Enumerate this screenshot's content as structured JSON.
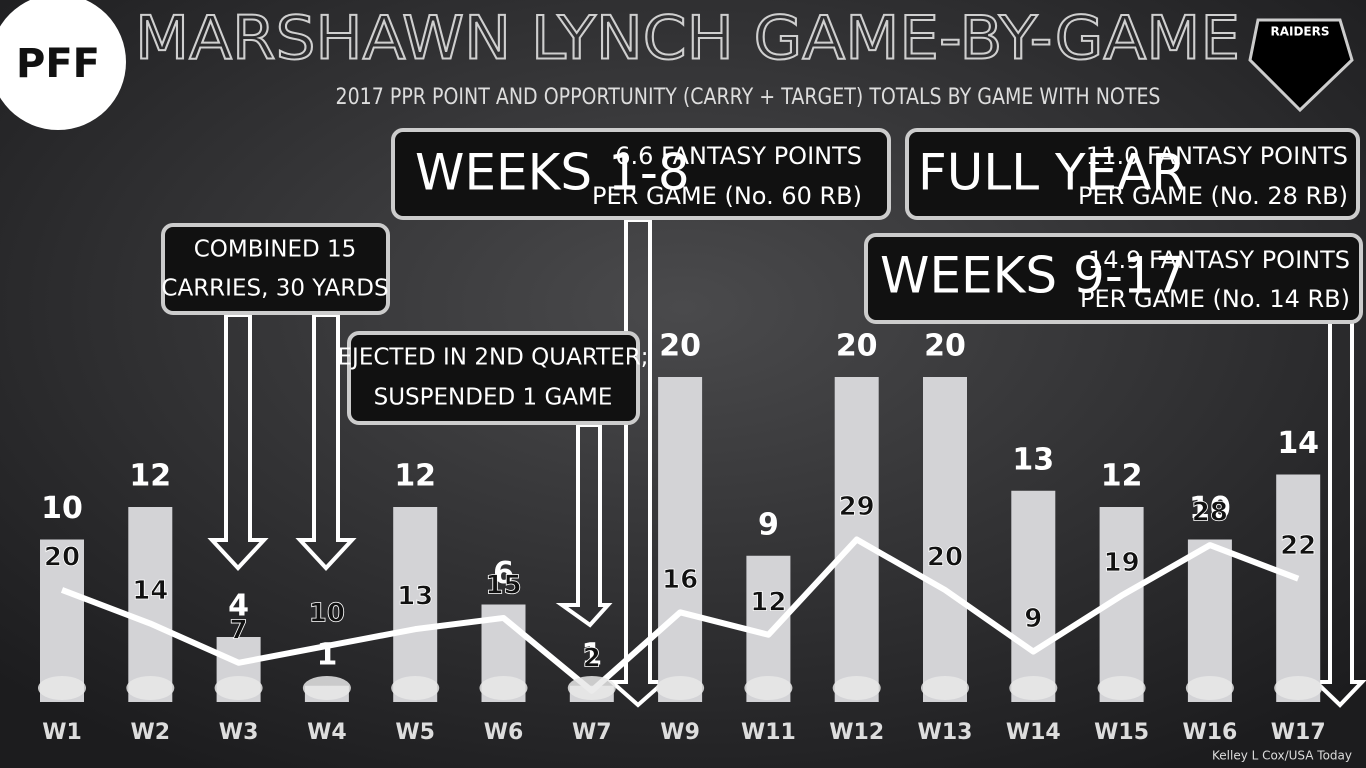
{
  "chart_data": {
    "type": "bar",
    "title": "MARSHAWN LYNCH GAME-BY-GAME",
    "subtitle": "2017 PPR POINT AND OPPORTUNITY (CARRY + TARGET) TOTALS BY GAME WITH NOTES",
    "logo": "PFF",
    "team": "RAIDERS",
    "credit": "Kelley L Cox/USA Today",
    "categories": [
      "W1",
      "W2",
      "W3",
      "W4",
      "W5",
      "W6",
      "W7",
      "W9",
      "W11",
      "W12",
      "W13",
      "W14",
      "W15",
      "W16",
      "W17"
    ],
    "series": [
      {
        "color": "#d3d3d6",
        "values": [
          10,
          12,
          4,
          1,
          12,
          6,
          1,
          20,
          9,
          20,
          20,
          13,
          12,
          10,
          14
        ]
      },
      {
        "color": "#ffffff",
        "axis": "y2",
        "values": [
          20,
          14,
          7,
          10,
          13,
          15,
          2,
          16,
          12,
          29,
          20,
          9,
          19,
          28,
          22
        ]
      }
    ],
    "ylim": [
      0,
      20
    ],
    "y2lim": [
      0,
      58
    ],
    "annotations": [
      {
        "lines": [
          "COMBINED 15",
          "CARRIES, 30 YARDS"
        ]
      },
      {
        "lines": [
          "EJECTED IN 2ND QUARTER;",
          "SUSPENDED 1 GAME"
        ]
      },
      {
        "label": "WEEKS 1-8",
        "lines": [
          "6.6 FANTASY POINTS",
          "PER GAME (No. 60 RB)"
        ]
      },
      {
        "label": "FULL YEAR",
        "lines": [
          "11.0 FANTASY POINTS",
          "PER GAME (No. 28 RB)"
        ]
      },
      {
        "label": "WEEKS 9-17",
        "lines": [
          "14.9 FANTASY POINTS",
          "PER GAME (No. 14 RB)"
        ]
      }
    ]
  }
}
